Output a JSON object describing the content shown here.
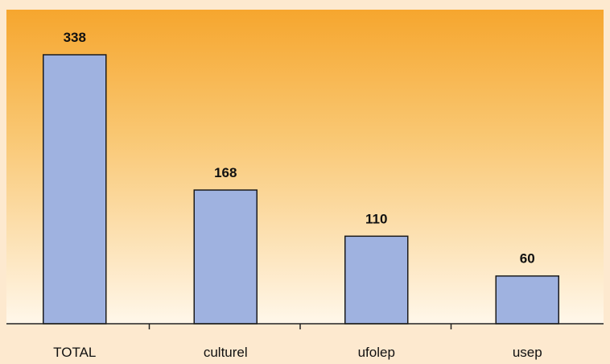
{
  "chart_data": {
    "type": "bar",
    "categories": [
      "TOTAL",
      "culturel",
      "ufolep",
      "usep"
    ],
    "values": [
      338,
      168,
      110,
      60
    ],
    "data_labels": [
      "338",
      "168",
      "110",
      "60"
    ],
    "title": "",
    "xlabel": "",
    "ylabel": "",
    "ylim": [
      0,
      338
    ],
    "grid": false,
    "legend": "none"
  },
  "colors": {
    "bar_fill": "#9fb2e0",
    "bar_stroke": "#1b1b1b",
    "background_top": "#f6a62e",
    "background_bottom": "#fff7ea",
    "frame": "#fde9cf",
    "axis": "#222222"
  }
}
